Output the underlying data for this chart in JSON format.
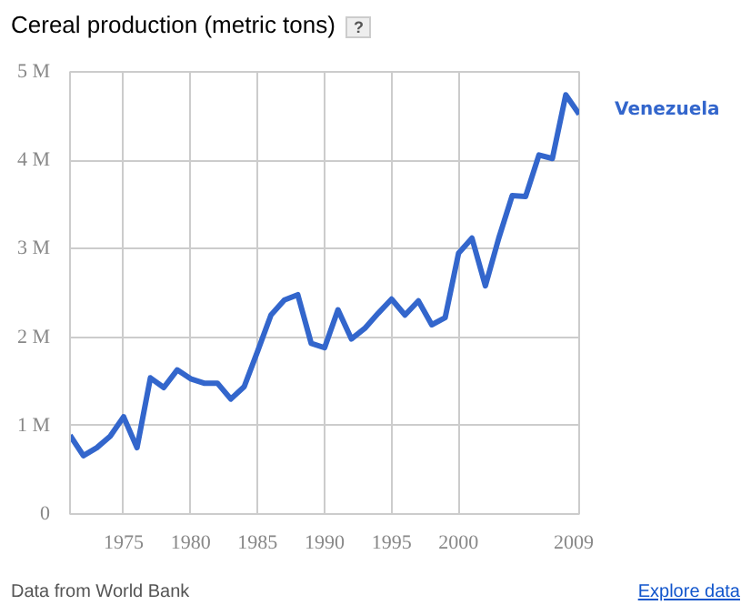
{
  "chart_data": {
    "type": "line",
    "title": "Cereal production (metric tons)",
    "x": [
      1971,
      1972,
      1973,
      1974,
      1975,
      1976,
      1977,
      1978,
      1979,
      1980,
      1981,
      1982,
      1983,
      1984,
      1985,
      1986,
      1987,
      1988,
      1989,
      1990,
      1991,
      1992,
      1993,
      1994,
      1995,
      1996,
      1997,
      1998,
      1999,
      2000,
      2001,
      2002,
      2003,
      2004,
      2005,
      2006,
      2007,
      2008,
      2009
    ],
    "series": [
      {
        "name": "Venezuela",
        "color": "#3366cc",
        "values": [
          890000,
          660000,
          750000,
          880000,
          1100000,
          750000,
          1540000,
          1430000,
          1630000,
          1530000,
          1480000,
          1480000,
          1300000,
          1440000,
          1840000,
          2250000,
          2420000,
          2480000,
          1930000,
          1880000,
          2310000,
          1980000,
          2100000,
          2270000,
          2430000,
          2250000,
          2410000,
          2140000,
          2220000,
          2950000,
          3120000,
          2580000,
          3120000,
          3600000,
          3590000,
          4060000,
          4020000,
          4740000,
          4520000
        ]
      }
    ],
    "xlim": [
      1971,
      2009
    ],
    "xticks": [
      1975,
      1980,
      1985,
      1990,
      1995,
      2000,
      2009
    ],
    "ylim": [
      0,
      5000000
    ],
    "yticks": [
      0,
      {
        "value": 1000000,
        "label": "1 M"
      },
      {
        "value": 2000000,
        "label": "2 M"
      },
      {
        "value": 3000000,
        "label": "3 M"
      },
      {
        "value": 4000000,
        "label": "4 M"
      },
      {
        "value": 5000000,
        "label": "5 M"
      }
    ],
    "grid": true,
    "legend": false,
    "marker": "none",
    "line_style": "solid",
    "annotations": [
      "?",
      "Data from World Bank",
      "Explore data"
    ]
  }
}
